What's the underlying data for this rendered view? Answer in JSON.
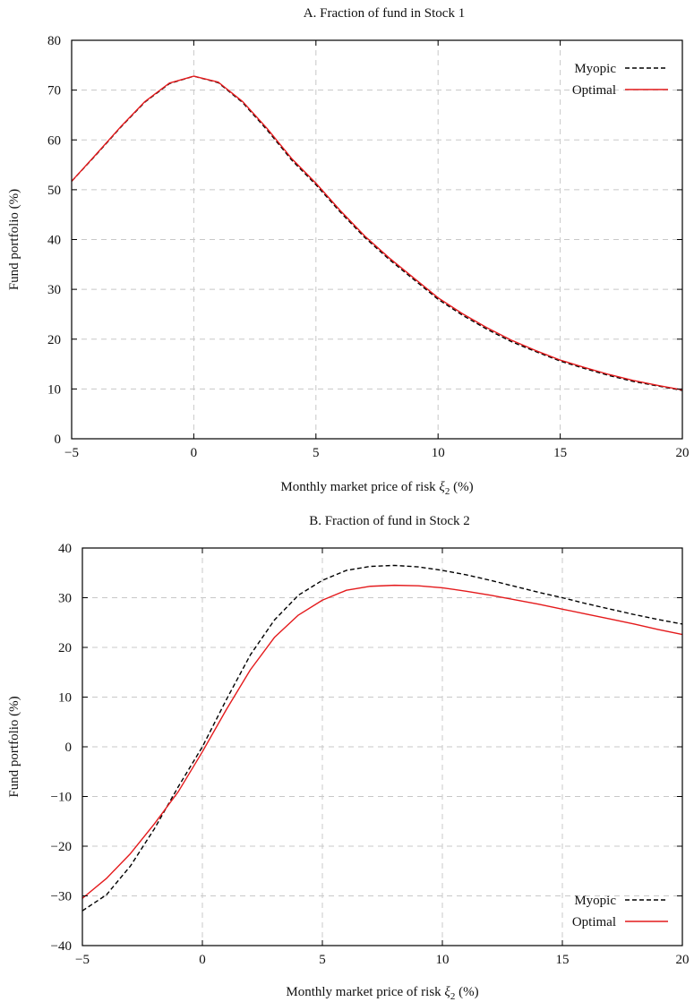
{
  "chart_data": [
    {
      "type": "line",
      "title": "A. Fraction of fund in Stock 1",
      "xlabel": "Monthly market price of risk",
      "xlabel_symbol": "ξ",
      "xlabel_subscript": "2",
      "xlabel_unit": "(%)",
      "ylabel": "Fund portfolio (%)",
      "xlim": [
        -5,
        20
      ],
      "ylim": [
        0,
        80
      ],
      "xticks": [
        -5,
        0,
        5,
        10,
        15,
        20
      ],
      "yticks": [
        0,
        10,
        20,
        30,
        40,
        50,
        60,
        70,
        80
      ],
      "grid": true,
      "legend_position": "top-right",
      "series": [
        {
          "name": "Myopic",
          "color": "#000000",
          "style": "dashed",
          "x": [
            -5,
            -4,
            -3,
            -2,
            -1,
            0,
            1,
            2,
            3,
            4,
            5,
            6,
            7,
            8,
            9,
            10,
            11,
            12,
            13,
            14,
            15,
            16,
            17,
            18,
            19,
            20
          ],
          "y": [
            51.7,
            57.0,
            62.5,
            67.6,
            71.3,
            72.8,
            71.5,
            67.5,
            62.0,
            56.0,
            51.0,
            45.5,
            40.4,
            36.0,
            32.0,
            28.0,
            24.8,
            22.0,
            19.5,
            17.5,
            15.6,
            14.1,
            12.7,
            11.5,
            10.6,
            9.7
          ]
        },
        {
          "name": "Optimal",
          "color": "#e41a1c",
          "style": "solid",
          "x": [
            -5,
            -4,
            -3,
            -2,
            -1,
            0,
            1,
            2,
            3,
            4,
            5,
            6,
            7,
            8,
            9,
            10,
            11,
            12,
            13,
            14,
            15,
            16,
            17,
            18,
            19,
            20
          ],
          "y": [
            51.7,
            57.1,
            62.6,
            67.7,
            71.4,
            72.8,
            71.6,
            67.7,
            62.3,
            56.3,
            51.3,
            45.8,
            40.7,
            36.3,
            32.3,
            28.3,
            25.1,
            22.3,
            19.8,
            17.7,
            15.8,
            14.3,
            12.9,
            11.7,
            10.7,
            9.8
          ]
        }
      ]
    },
    {
      "type": "line",
      "title": "B. Fraction of fund in Stock 2",
      "xlabel": "Monthly market price of risk",
      "xlabel_symbol": "ξ",
      "xlabel_subscript": "2",
      "xlabel_unit": "(%)",
      "ylabel": "Fund portfolio (%)",
      "xlim": [
        -5,
        20
      ],
      "ylim": [
        -40,
        40
      ],
      "xticks": [
        -5,
        0,
        5,
        10,
        15,
        20
      ],
      "yticks": [
        -40,
        -30,
        -20,
        -10,
        0,
        10,
        20,
        30,
        40
      ],
      "grid": true,
      "legend_position": "bottom-right",
      "series": [
        {
          "name": "Myopic",
          "color": "#000000",
          "style": "dashed",
          "x": [
            -5,
            -4,
            -3,
            -2,
            -1,
            0,
            1,
            2,
            3,
            4,
            5,
            6,
            7,
            8,
            9,
            10,
            11,
            12,
            13,
            14,
            15,
            16,
            17,
            18,
            19,
            20
          ],
          "y": [
            -33.0,
            -29.8,
            -24.0,
            -16.5,
            -8.0,
            0.0,
            9.5,
            18.5,
            25.5,
            30.5,
            33.5,
            35.5,
            36.3,
            36.5,
            36.2,
            35.5,
            34.6,
            33.5,
            32.3,
            31.1,
            30.0,
            28.8,
            27.7,
            26.6,
            25.6,
            24.7
          ]
        },
        {
          "name": "Optimal",
          "color": "#e41a1c",
          "style": "solid",
          "x": [
            -5,
            -4,
            -3,
            -2,
            -1,
            0,
            1,
            2,
            3,
            4,
            5,
            6,
            7,
            8,
            9,
            10,
            11,
            12,
            13,
            14,
            15,
            16,
            17,
            18,
            19,
            20
          ],
          "y": [
            -30.5,
            -26.5,
            -21.5,
            -15.5,
            -9.0,
            -1.0,
            7.5,
            15.5,
            22.0,
            26.5,
            29.5,
            31.5,
            32.3,
            32.5,
            32.4,
            32.0,
            31.3,
            30.5,
            29.6,
            28.7,
            27.7,
            26.7,
            25.7,
            24.7,
            23.6,
            22.6
          ]
        }
      ]
    }
  ]
}
